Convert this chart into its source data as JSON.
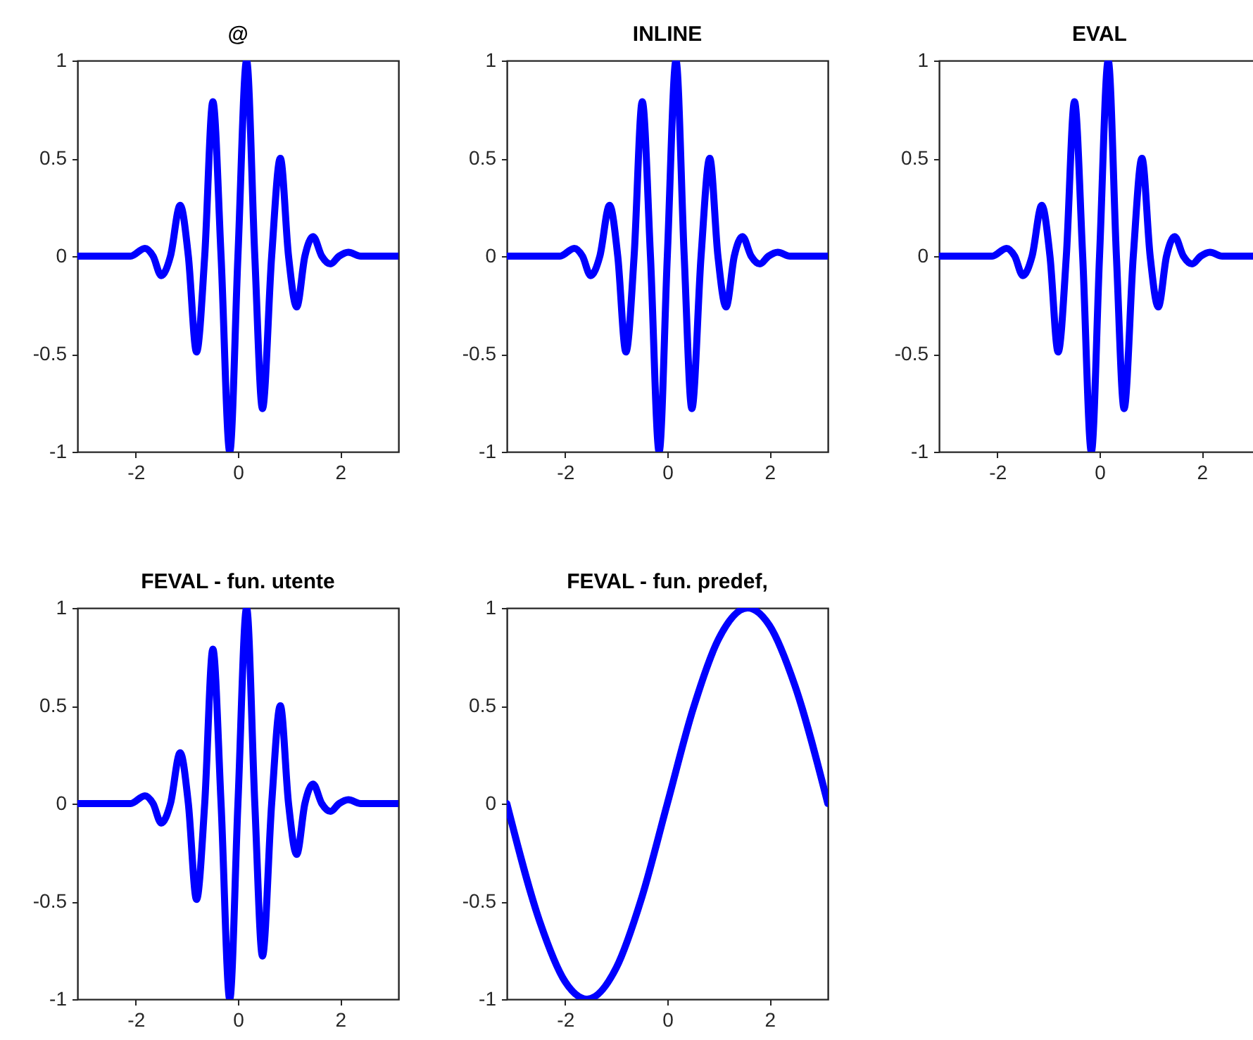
{
  "chart_data": [
    {
      "type": "line",
      "title": "@",
      "x": [
        -3.14,
        -2.4,
        -2.1,
        -1.82,
        -1.66,
        -1.5,
        -1.32,
        -1.13,
        -0.97,
        -0.81,
        -0.65,
        -0.49,
        -0.33,
        -0.16,
        0,
        0.17,
        0.33,
        0.48,
        0.66,
        0.83,
        0.99,
        1.15,
        1.31,
        1.47,
        1.64,
        1.81,
        1.98,
        2.16,
        2.4,
        3.14
      ],
      "series": [
        {
          "color": "#0000ff",
          "values": [
            0,
            0,
            0,
            0.04,
            0,
            -0.1,
            0,
            0.26,
            0,
            -0.49,
            0,
            0.79,
            0,
            -1,
            0,
            1,
            0,
            -0.78,
            0,
            0.5,
            0,
            -0.26,
            0,
            0.1,
            0,
            -0.04,
            0,
            0.02,
            0,
            0
          ]
        }
      ],
      "xlim": [
        -3.14,
        3.14
      ],
      "ylim": [
        -1,
        1
      ],
      "xticks": [
        -2,
        0,
        2
      ],
      "yticks": [
        -1,
        -0.5,
        0,
        0.5,
        1
      ]
    },
    {
      "type": "line",
      "title": "INLINE",
      "x": [
        -3.14,
        -2.4,
        -2.1,
        -1.82,
        -1.66,
        -1.5,
        -1.32,
        -1.13,
        -0.97,
        -0.81,
        -0.65,
        -0.49,
        -0.33,
        -0.16,
        0,
        0.17,
        0.33,
        0.48,
        0.66,
        0.83,
        0.99,
        1.15,
        1.31,
        1.47,
        1.64,
        1.81,
        1.98,
        2.16,
        2.4,
        3.14
      ],
      "series": [
        {
          "color": "#0000ff",
          "values": [
            0,
            0,
            0,
            0.04,
            0,
            -0.1,
            0,
            0.26,
            0,
            -0.49,
            0,
            0.79,
            0,
            -1,
            0,
            1,
            0,
            -0.78,
            0,
            0.5,
            0,
            -0.26,
            0,
            0.1,
            0,
            -0.04,
            0,
            0.02,
            0,
            0
          ]
        }
      ],
      "xlim": [
        -3.14,
        3.14
      ],
      "ylim": [
        -1,
        1
      ],
      "xticks": [
        -2,
        0,
        2
      ],
      "yticks": [
        -1,
        -0.5,
        0,
        0.5,
        1
      ]
    },
    {
      "type": "line",
      "title": "EVAL",
      "x": [
        -3.14,
        -2.4,
        -2.1,
        -1.82,
        -1.66,
        -1.5,
        -1.32,
        -1.13,
        -0.97,
        -0.81,
        -0.65,
        -0.49,
        -0.33,
        -0.16,
        0,
        0.17,
        0.33,
        0.48,
        0.66,
        0.83,
        0.99,
        1.15,
        1.31,
        1.47,
        1.64,
        1.81,
        1.98,
        2.16,
        2.4,
        3.14
      ],
      "series": [
        {
          "color": "#0000ff",
          "values": [
            0,
            0,
            0,
            0.04,
            0,
            -0.1,
            0,
            0.26,
            0,
            -0.49,
            0,
            0.79,
            0,
            -1,
            0,
            1,
            0,
            -0.78,
            0,
            0.5,
            0,
            -0.26,
            0,
            0.1,
            0,
            -0.04,
            0,
            0.02,
            0,
            0
          ]
        }
      ],
      "xlim": [
        -3.14,
        3.14
      ],
      "ylim": [
        -1,
        1
      ],
      "xticks": [
        -2,
        0,
        2
      ],
      "yticks": [
        -1,
        -0.5,
        0,
        0.5,
        1
      ]
    },
    {
      "type": "line",
      "title": "FEVAL - fun. utente",
      "x": [
        -3.14,
        -2.4,
        -2.1,
        -1.82,
        -1.66,
        -1.5,
        -1.32,
        -1.13,
        -0.97,
        -0.81,
        -0.65,
        -0.49,
        -0.33,
        -0.16,
        0,
        0.17,
        0.33,
        0.48,
        0.66,
        0.83,
        0.99,
        1.15,
        1.31,
        1.47,
        1.64,
        1.81,
        1.98,
        2.16,
        2.4,
        3.14
      ],
      "series": [
        {
          "color": "#0000ff",
          "values": [
            0,
            0,
            0,
            0.04,
            0,
            -0.1,
            0,
            0.26,
            0,
            -0.49,
            0,
            0.79,
            0,
            -1,
            0,
            1,
            0,
            -0.78,
            0,
            0.5,
            0,
            -0.26,
            0,
            0.1,
            0,
            -0.04,
            0,
            0.02,
            0,
            0
          ]
        }
      ],
      "xlim": [
        -3.14,
        3.14
      ],
      "ylim": [
        -1,
        1
      ],
      "xticks": [
        -2,
        0,
        2
      ],
      "yticks": [
        -1,
        -0.5,
        0,
        0.5,
        1
      ]
    },
    {
      "type": "line",
      "title": "FEVAL - fun. predef,",
      "x": [
        -3.14,
        -2.5,
        -2,
        -1.57,
        -1,
        -0.5,
        0,
        0.5,
        1,
        1.57,
        2,
        2.5,
        3.14
      ],
      "series": [
        {
          "color": "#0000ff",
          "values": [
            0,
            -0.6,
            -0.91,
            -1,
            -0.84,
            -0.48,
            0,
            0.48,
            0.84,
            1,
            0.91,
            0.6,
            0
          ]
        }
      ],
      "xlim": [
        -3.14,
        3.14
      ],
      "ylim": [
        -1,
        1
      ],
      "xticks": [
        -2,
        0,
        2
      ],
      "yticks": [
        -1,
        -0.5,
        0,
        0.5,
        1
      ]
    }
  ]
}
